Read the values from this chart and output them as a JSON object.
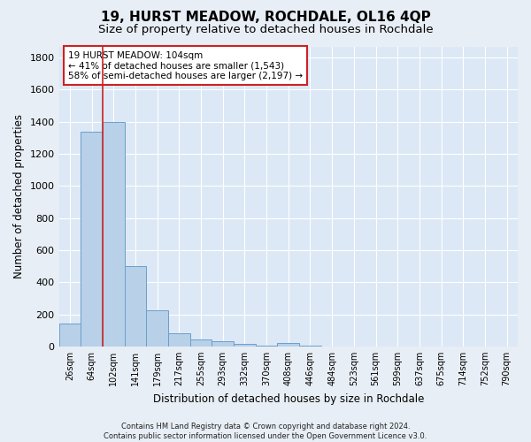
{
  "title": "19, HURST MEADOW, ROCHDALE, OL16 4QP",
  "subtitle": "Size of property relative to detached houses in Rochdale",
  "xlabel": "Distribution of detached houses by size in Rochdale",
  "ylabel": "Number of detached properties",
  "categories": [
    "26sqm",
    "64sqm",
    "102sqm",
    "141sqm",
    "179sqm",
    "217sqm",
    "255sqm",
    "293sqm",
    "332sqm",
    "370sqm",
    "408sqm",
    "446sqm",
    "484sqm",
    "523sqm",
    "561sqm",
    "599sqm",
    "637sqm",
    "675sqm",
    "714sqm",
    "752sqm",
    "790sqm"
  ],
  "values": [
    140,
    1340,
    1400,
    500,
    225,
    80,
    45,
    30,
    18,
    5,
    20,
    5,
    0,
    0,
    0,
    0,
    0,
    0,
    0,
    0,
    0
  ],
  "bar_color": "#b8d0e8",
  "bar_edge_color": "#6aa0cc",
  "vline_x_index": 2,
  "vline_color": "#cc2222",
  "annotation_text": "19 HURST MEADOW: 104sqm\n← 41% of detached houses are smaller (1,543)\n58% of semi-detached houses are larger (2,197) →",
  "annotation_box_facecolor": "#ffffff",
  "annotation_box_edgecolor": "#cc2222",
  "ylim": [
    0,
    1870
  ],
  "yticks": [
    0,
    200,
    400,
    600,
    800,
    1000,
    1200,
    1400,
    1600,
    1800
  ],
  "plot_bg_color": "#dce8f5",
  "fig_bg_color": "#e8eef5",
  "grid_color": "#ffffff",
  "title_fontsize": 11,
  "subtitle_fontsize": 9.5,
  "axis_label_fontsize": 8.5,
  "tick_fontsize": 7,
  "annotation_fontsize": 7.5,
  "footer_fontsize": 6,
  "footer": "Contains HM Land Registry data © Crown copyright and database right 2024.\nContains public sector information licensed under the Open Government Licence v3.0."
}
